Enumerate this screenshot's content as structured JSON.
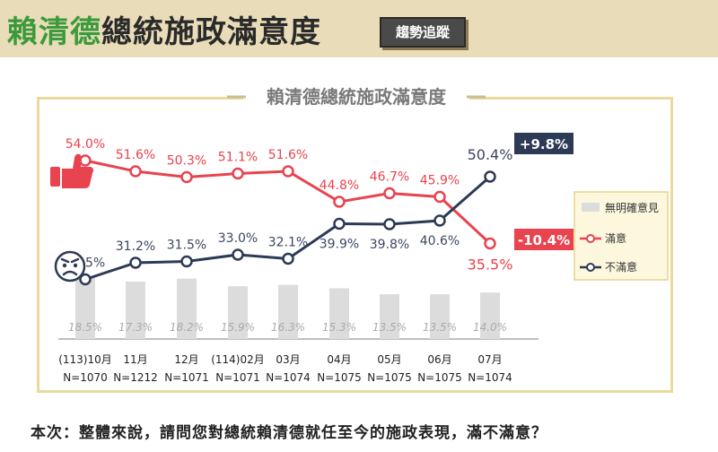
{
  "header": {
    "title_name": "賴清德",
    "title_rest": "總統施政滿意度",
    "tag": "趨勢追蹤"
  },
  "chart_data": {
    "type": "line",
    "title": "賴清德總統施政滿意度",
    "categories": [
      [
        "(113)10月",
        "N=1070"
      ],
      [
        "11月",
        "N=1212"
      ],
      [
        "12月",
        "N=1071"
      ],
      [
        "(114)02月",
        "N=1071"
      ],
      [
        "03月",
        "N=1074"
      ],
      [
        "04月",
        "N=1075"
      ],
      [
        "05月",
        "N=1075"
      ],
      [
        "06月",
        "N=1075"
      ],
      [
        "07月",
        "N=1074"
      ]
    ],
    "series": [
      {
        "name": "滿意",
        "color": "#e8434f",
        "values": [
          54.0,
          51.6,
          50.3,
          51.1,
          51.6,
          44.8,
          46.7,
          45.9,
          35.5
        ]
      },
      {
        "name": "不滿意",
        "color": "#2d3a55",
        "values": [
          27.5,
          31.2,
          31.5,
          33.0,
          32.1,
          39.9,
          39.8,
          40.6,
          50.4
        ]
      }
    ],
    "bars": {
      "name": "無明確意見",
      "color": "#dcdcdc",
      "values": [
        18.5,
        17.3,
        18.2,
        15.9,
        16.3,
        15.3,
        13.5,
        13.5,
        14.0
      ]
    },
    "labels": {
      "satisfied": [
        "54.0%",
        "51.6%",
        "50.3%",
        "51.1%",
        "51.6%",
        "44.8%",
        "46.7%",
        "45.9%",
        "35.5%"
      ],
      "dissatisfied": [
        "27.5%",
        "31.2%",
        "31.5%",
        "33.0%",
        "32.1%",
        "39.9%",
        "39.8%",
        "40.6%",
        "50.4%"
      ],
      "no_opinion": [
        "18.5%",
        "17.3%",
        "18.2%",
        "15.9%",
        "16.3%",
        "15.3%",
        "13.5%",
        "13.5%",
        "14.0%"
      ]
    },
    "changes": {
      "dissatisfied": "+9.8%",
      "satisfied": "-10.4%"
    },
    "legend": [
      "無明確意見",
      "滿意",
      "不滿意"
    ],
    "legend_position": "right",
    "grid": false
  },
  "footer": {
    "question": "本次：整體來說，請問您對總統賴清德就任至今的施政表現，滿不滿意？"
  },
  "icons": [
    "thumbs-up-icon",
    "angry-face-icon"
  ]
}
